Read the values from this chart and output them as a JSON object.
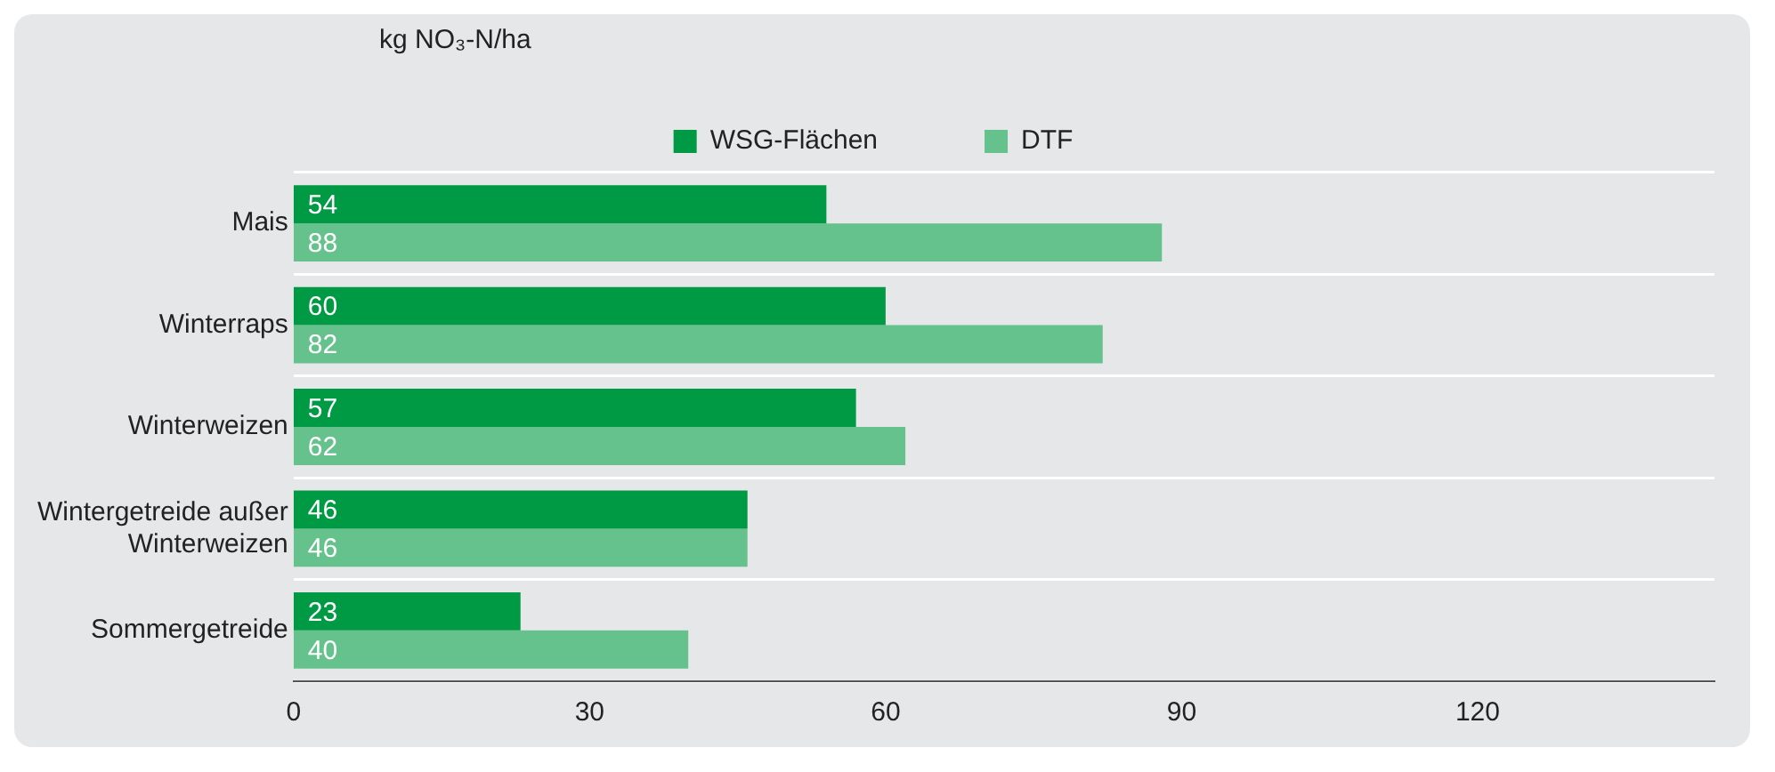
{
  "chart_data": {
    "type": "bar",
    "orientation": "horizontal",
    "annotations": [
      "kg NO₃-N/ha"
    ],
    "categories": [
      "Mais",
      "Winterraps",
      "Winterweizen",
      "Wintergetreide außer Winterweizen",
      "Sommergetreide"
    ],
    "series": [
      {
        "name": "WSG-Flächen",
        "color": "#009a44",
        "values": [
          54,
          60,
          57,
          46,
          23
        ]
      },
      {
        "name": "DTF",
        "color": "#66c28c",
        "values": [
          88,
          82,
          62,
          46,
          40
        ]
      }
    ],
    "xlim": [
      0,
      144
    ],
    "xticks": [
      0,
      30,
      60,
      90,
      120
    ],
    "grid": "y",
    "legend": "top",
    "data_labels": true
  }
}
